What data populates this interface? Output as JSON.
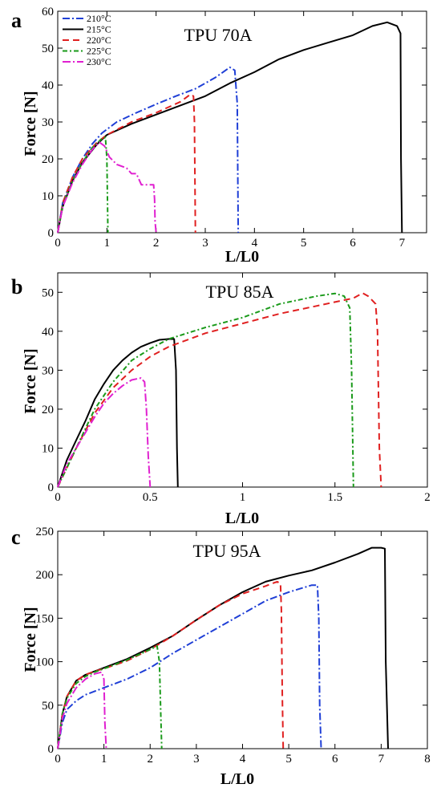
{
  "legend": [
    {
      "name": "210°C",
      "color": "#1f3fd6",
      "dash": "9,3,2,3"
    },
    {
      "name": "215°C",
      "color": "#000000",
      "dash": ""
    },
    {
      "name": "220°C",
      "color": "#e02020",
      "dash": "8,5"
    },
    {
      "name": "225°C",
      "color": "#1a9a1a",
      "dash": "6,3,2,3"
    },
    {
      "name": "230°C",
      "color": "#e020d0",
      "dash": "10,3,2,3"
    }
  ],
  "chart_data": [
    {
      "type": "line",
      "panel_letter": "a",
      "title": "TPU 70A",
      "xlabel": "L/L0",
      "ylabel": "Force [N]",
      "xlim": [
        0,
        7.5
      ],
      "ylim": [
        0,
        60
      ],
      "xticks": [
        "0",
        "1",
        "2",
        "3",
        "4",
        "5",
        "6",
        "7"
      ],
      "yticks": [
        "0",
        "10",
        "20",
        "30",
        "40",
        "50",
        "60"
      ],
      "legend_position": "top-left",
      "series": [
        {
          "name": "210°C",
          "x": [
            0,
            0.1,
            0.3,
            0.5,
            0.7,
            0.9,
            1.2,
            1.6,
            2.0,
            2.4,
            2.8,
            3.2,
            3.5,
            3.6,
            3.65,
            3.67
          ],
          "y": [
            0,
            8,
            15,
            20,
            24,
            27,
            30,
            32.5,
            34.8,
            37,
            39,
            42,
            44.8,
            44,
            35,
            0
          ]
        },
        {
          "name": "215°C",
          "x": [
            0,
            0.1,
            0.3,
            0.5,
            0.8,
            1.0,
            1.5,
            2.0,
            2.5,
            3.0,
            3.5,
            4.0,
            4.5,
            5.0,
            5.5,
            6.0,
            6.4,
            6.7,
            6.9,
            6.97,
            6.98,
            7.0
          ],
          "y": [
            0,
            7,
            14,
            19,
            24,
            26.5,
            29.5,
            32,
            34.5,
            37,
            40.5,
            43.5,
            47,
            49.5,
            51.5,
            53.5,
            56,
            57,
            56,
            54,
            20,
            0
          ]
        },
        {
          "name": "220°C",
          "x": [
            0,
            0.1,
            0.3,
            0.5,
            0.8,
            1.0,
            1.5,
            2.0,
            2.5,
            2.7,
            2.76,
            2.78,
            2.8
          ],
          "y": [
            0,
            8,
            15,
            20,
            24.5,
            26.5,
            30,
            32.5,
            35.5,
            37.5,
            37,
            30,
            0
          ]
        },
        {
          "name": "225°C",
          "x": [
            0,
            0.1,
            0.3,
            0.5,
            0.7,
            0.9,
            0.97,
            1.0,
            1.02
          ],
          "y": [
            0,
            7.5,
            14,
            19,
            23,
            25.5,
            25.8,
            20,
            0
          ]
        },
        {
          "name": "230°C",
          "x": [
            0,
            0.1,
            0.3,
            0.5,
            0.7,
            0.85,
            0.95,
            1.05,
            1.2,
            1.4,
            1.5,
            1.6,
            1.7,
            1.8,
            1.9,
            1.95,
            1.97,
            1.98,
            2.0
          ],
          "y": [
            0,
            7,
            13.5,
            18.5,
            22.5,
            24.5,
            23.5,
            20.5,
            18.5,
            17.5,
            16,
            16,
            13,
            13,
            13,
            13,
            9,
            3,
            0
          ]
        }
      ]
    },
    {
      "type": "line",
      "panel_letter": "b",
      "title": "TPU 85A",
      "xlabel": "L/L0",
      "ylabel": "Force [N]",
      "xlim": [
        0,
        2
      ],
      "ylim": [
        0,
        55
      ],
      "xticks": [
        "0",
        "0.5",
        "1",
        "1.5",
        "2"
      ],
      "yticks": [
        "0",
        "10",
        "20",
        "30",
        "40",
        "50"
      ],
      "series": [
        {
          "name": "215°C",
          "x": [
            0,
            0.05,
            0.1,
            0.15,
            0.2,
            0.25,
            0.3,
            0.35,
            0.4,
            0.45,
            0.5,
            0.55,
            0.6,
            0.63,
            0.64,
            0.645,
            0.65
          ],
          "y": [
            0,
            7,
            12,
            17,
            22.5,
            26.5,
            30,
            32.5,
            34.5,
            36,
            37,
            37.8,
            38,
            38,
            30,
            10,
            0
          ]
        },
        {
          "name": "220°C",
          "x": [
            0,
            0.1,
            0.2,
            0.3,
            0.4,
            0.5,
            0.6,
            0.8,
            1.0,
            1.2,
            1.4,
            1.5,
            1.6,
            1.65,
            1.68,
            1.72,
            1.73,
            1.74,
            1.75
          ],
          "y": [
            0,
            10,
            19,
            25.5,
            30,
            33.5,
            36,
            39.5,
            42,
            44.5,
            46.5,
            47.5,
            48.5,
            49.8,
            49,
            47,
            40,
            10,
            0
          ]
        },
        {
          "name": "225°C",
          "x": [
            0,
            0.1,
            0.2,
            0.3,
            0.4,
            0.5,
            0.6,
            0.8,
            1.0,
            1.2,
            1.4,
            1.5,
            1.55,
            1.58,
            1.59,
            1.6
          ],
          "y": [
            0,
            10,
            20,
            27,
            32.5,
            35.5,
            38,
            41,
            43.5,
            47,
            49,
            49.7,
            49,
            46,
            30,
            0
          ]
        },
        {
          "name": "230°C",
          "x": [
            0,
            0.05,
            0.1,
            0.15,
            0.2,
            0.25,
            0.3,
            0.35,
            0.4,
            0.45,
            0.47,
            0.48,
            0.49,
            0.5
          ],
          "y": [
            0,
            6,
            10,
            14,
            18,
            21.5,
            24,
            26,
            27.5,
            28,
            27,
            20,
            8,
            0
          ]
        }
      ]
    },
    {
      "type": "line",
      "panel_letter": "c",
      "title": "TPU 95A",
      "xlabel": "L/L0",
      "ylabel": "Force [N]",
      "xlim": [
        0,
        8
      ],
      "ylim": [
        0,
        250
      ],
      "xticks": [
        "0",
        "1",
        "2",
        "3",
        "4",
        "5",
        "6",
        "7",
        "8"
      ],
      "yticks": [
        "0",
        "50",
        "100",
        "150",
        "200",
        "250"
      ],
      "series": [
        {
          "name": "210°C",
          "x": [
            0,
            0.1,
            0.2,
            0.4,
            0.6,
            1.0,
            1.5,
            2.0,
            2.5,
            3.0,
            3.5,
            4.0,
            4.5,
            5.0,
            5.5,
            5.62,
            5.65,
            5.67,
            5.7
          ],
          "y": [
            0,
            30,
            45,
            55,
            62,
            70,
            80,
            93,
            110,
            125,
            140,
            155,
            170,
            180,
            188,
            188,
            150,
            50,
            0
          ]
        },
        {
          "name": "215°C",
          "x": [
            0,
            0.1,
            0.2,
            0.4,
            0.6,
            0.8,
            1.0,
            1.5,
            2.0,
            2.5,
            3.0,
            3.5,
            4.0,
            4.5,
            5.0,
            5.5,
            6.0,
            6.5,
            6.8,
            7.0,
            7.08,
            7.1,
            7.15
          ],
          "y": [
            0,
            40,
            60,
            78,
            85,
            89,
            93,
            103,
            116,
            130,
            148,
            165,
            180,
            192,
            199,
            205,
            214,
            224,
            231,
            231,
            230,
            100,
            0
          ]
        },
        {
          "name": "220°C",
          "x": [
            0,
            0.1,
            0.2,
            0.4,
            0.6,
            0.8,
            1.0,
            1.5,
            2.0,
            2.5,
            3.0,
            3.5,
            4.0,
            4.5,
            4.75,
            4.82,
            4.84,
            4.86,
            4.88
          ],
          "y": [
            0,
            40,
            60,
            78,
            85,
            89,
            92,
            101,
            114,
            130,
            148,
            165,
            178,
            187,
            192,
            190,
            160,
            60,
            0
          ]
        },
        {
          "name": "225°C",
          "x": [
            0,
            0.1,
            0.2,
            0.4,
            0.6,
            0.8,
            1.0,
            1.5,
            2.0,
            2.15,
            2.2,
            2.23,
            2.25
          ],
          "y": [
            0,
            40,
            58,
            75,
            83,
            88,
            92,
            102,
            114,
            118,
            100,
            40,
            0
          ]
        },
        {
          "name": "230°C",
          "x": [
            0,
            0.1,
            0.2,
            0.4,
            0.6,
            0.8,
            0.95,
            1.0,
            1.02,
            1.05
          ],
          "y": [
            0,
            35,
            52,
            70,
            80,
            86,
            88,
            80,
            30,
            0
          ]
        }
      ]
    }
  ]
}
